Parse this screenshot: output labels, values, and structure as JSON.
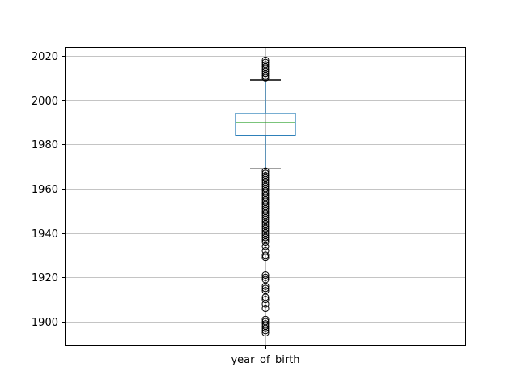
{
  "chart_data": {
    "type": "box",
    "title": "",
    "xlabel": "",
    "ylabel": "",
    "categories": [
      "year_of_birth"
    ],
    "ylim": [
      1889,
      2024
    ],
    "yticks": [
      1900,
      1920,
      1940,
      1960,
      1980,
      2000,
      2020
    ],
    "grid": true,
    "colors": {
      "box": "#1f77b4",
      "median": "#2ca02c",
      "whisker": "#1f77b4",
      "cap": "#000000",
      "flier": "#000000",
      "grid": "#b0b0b0"
    },
    "box": {
      "q1": 1984,
      "median": 1990,
      "q3": 1994,
      "whisker_low": 1969,
      "whisker_high": 2009
    },
    "fliers": [
      1895,
      1896,
      1897,
      1898,
      1899,
      1900,
      1901,
      1906,
      1908,
      1910,
      1911,
      1914,
      1915,
      1916,
      1919,
      1920,
      1921,
      1929,
      1930,
      1932,
      1934,
      1936,
      1937,
      1938,
      1939,
      1940,
      1941,
      1942,
      1943,
      1944,
      1945,
      1946,
      1947,
      1948,
      1949,
      1950,
      1951,
      1952,
      1953,
      1954,
      1955,
      1956,
      1957,
      1958,
      1959,
      1960,
      1961,
      1962,
      1963,
      1964,
      1965,
      1966,
      1967,
      1968,
      2010,
      2011,
      2012,
      2013,
      2014,
      2015,
      2016,
      2017,
      2018
    ]
  }
}
